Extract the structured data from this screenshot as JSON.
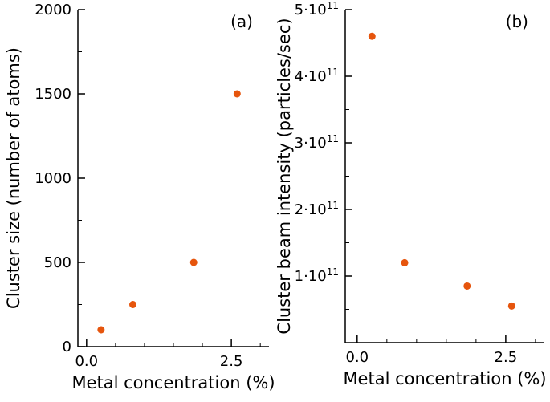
{
  "figure": {
    "background": "#ffffff",
    "text_color": "#000000",
    "marker_color": "#e6550d"
  },
  "chart_data": [
    {
      "type": "scatter",
      "panel_label": "(a)",
      "xlabel": "Metal concentration (%)",
      "ylabel": "Cluster size (number of atoms)",
      "xlim": [
        -0.15,
        3.15
      ],
      "ylim": [
        0,
        2000
      ],
      "xticks": [
        0.0,
        2.5
      ],
      "xtick_labels": [
        "0.0",
        "2.5"
      ],
      "xminor": [
        0.5,
        1.0,
        1.5,
        2.0,
        3.0
      ],
      "yticks": [
        0,
        500,
        1000,
        1500,
        2000
      ],
      "ytick_labels": [
        "0",
        "500",
        "1000",
        "1500",
        "2000"
      ],
      "yminor": [
        250,
        750,
        1250,
        1750
      ],
      "grid": false,
      "legend": null,
      "marker_color": "#e6550d",
      "points": [
        {
          "x": 0.25,
          "y": 100
        },
        {
          "x": 0.8,
          "y": 250
        },
        {
          "x": 1.85,
          "y": 500
        },
        {
          "x": 2.6,
          "y": 1500
        }
      ]
    },
    {
      "type": "scatter",
      "panel_label": "(b)",
      "xlabel": "Metal concentration (%)",
      "ylabel": "Cluster beam intensity (particles/sec)",
      "xlim": [
        -0.2,
        3.15
      ],
      "ylim": [
        0,
        500000000000.0
      ],
      "xticks": [
        0.0,
        2.5
      ],
      "xtick_labels": [
        "0.0",
        "2.5"
      ],
      "xminor": [
        0.5,
        1.0,
        1.5,
        2.0,
        3.0
      ],
      "yticks": [
        100000000000.0,
        200000000000.0,
        300000000000.0,
        400000000000.0,
        500000000000.0
      ],
      "ytick_labels": [
        {
          "base": "1·10",
          "sup": "11"
        },
        {
          "base": "2·10",
          "sup": "11"
        },
        {
          "base": "3·10",
          "sup": "11"
        },
        {
          "base": "4·10",
          "sup": "11"
        },
        {
          "base": "5·10",
          "sup": "11"
        }
      ],
      "yminor": [
        50000000000.0,
        150000000000.0,
        250000000000.0,
        350000000000.0,
        450000000000.0
      ],
      "grid": false,
      "legend": null,
      "marker_color": "#e6550d",
      "points": [
        {
          "x": 0.25,
          "y": 460000000000.0
        },
        {
          "x": 0.8,
          "y": 120000000000.0
        },
        {
          "x": 1.85,
          "y": 85000000000.0
        },
        {
          "x": 2.6,
          "y": 55000000000.0
        }
      ]
    }
  ]
}
